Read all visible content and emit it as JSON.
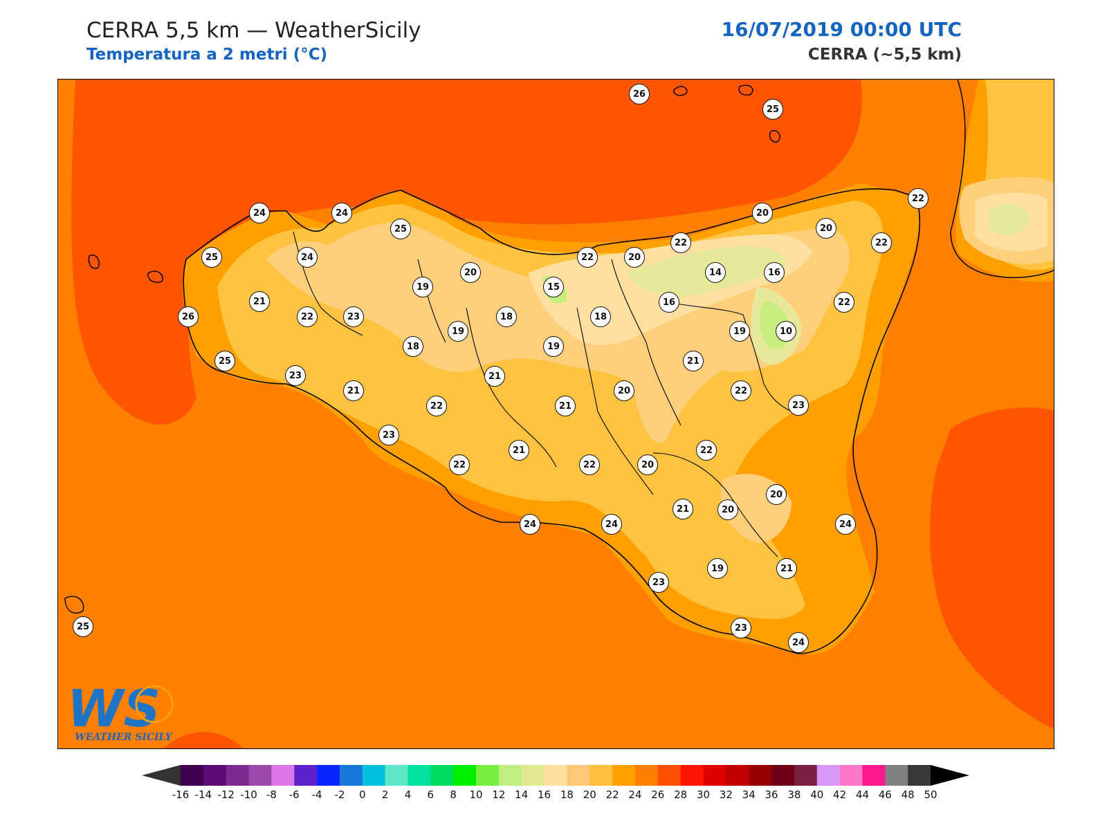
{
  "header": {
    "title": "CERRA 5,5 km — WeatherSicily",
    "subtitle": "Temperatura a 2 metri (°C)",
    "datetime": "16/07/2019 00:00 UTC",
    "model": "CERRA (~5,5 km)"
  },
  "logo": {
    "name": "weather-sicily-logo",
    "letters": "WS",
    "text": "WEATHER SICILY"
  },
  "colors": {
    "sea_hot": "#ff5400",
    "sea_warm": "#ff8000",
    "land_24": "#ffa000",
    "land_22": "#ffc340",
    "land_20": "#ffcf7c",
    "land_18": "#ffe0a0",
    "land_16": "#e8e89a",
    "land_14": "#c8ee80",
    "title_blue": "#1565c0"
  },
  "colorbar": {
    "labels": [
      "-16",
      "-14",
      "-12",
      "-10",
      "-8",
      "-6",
      "-4",
      "-2",
      "0",
      "2",
      "4",
      "6",
      "8",
      "10",
      "12",
      "14",
      "16",
      "18",
      "20",
      "22",
      "24",
      "26",
      "28",
      "30",
      "32",
      "34",
      "36",
      "38",
      "40",
      "42",
      "44",
      "46",
      "48",
      "50"
    ],
    "colors": [
      "#3f0050",
      "#5c0a73",
      "#7b2a8f",
      "#9b4aab",
      "#dd77e8",
      "#5a22c8",
      "#0a26ff",
      "#1878d8",
      "#00c0e0",
      "#5fe8c8",
      "#00e0a0",
      "#00dc60",
      "#00f000",
      "#78f040",
      "#c0ee80",
      "#e0e890",
      "#ffe0a0",
      "#ffc878",
      "#ffc040",
      "#ffa000",
      "#ff8000",
      "#ff5000",
      "#ff1400",
      "#e00000",
      "#c00000",
      "#980000",
      "#700018",
      "#7a2040",
      "#d898f8",
      "#ff78c8",
      "#ff1890",
      "#808080",
      "#383838"
    ],
    "under_color": "#333333",
    "over_color": "#000000"
  },
  "stations": [
    {
      "v": "26"
    },
    {
      "v": "25"
    },
    {
      "v": "24"
    },
    {
      "v": "24"
    },
    {
      "v": "25"
    },
    {
      "v": "25"
    },
    {
      "v": "24"
    },
    {
      "v": "21"
    },
    {
      "v": "26"
    },
    {
      "v": "22"
    },
    {
      "v": "23"
    },
    {
      "v": "19"
    },
    {
      "v": "20"
    },
    {
      "v": "19"
    },
    {
      "v": "18"
    },
    {
      "v": "18"
    },
    {
      "v": "15"
    },
    {
      "v": "18"
    },
    {
      "v": "22"
    },
    {
      "v": "20"
    },
    {
      "v": "22"
    },
    {
      "v": "20"
    },
    {
      "v": "22"
    },
    {
      "v": "22"
    },
    {
      "v": "20"
    },
    {
      "v": "14"
    },
    {
      "v": "16"
    },
    {
      "v": "16"
    },
    {
      "v": "22"
    },
    {
      "v": "19"
    },
    {
      "v": "10"
    },
    {
      "v": "19"
    },
    {
      "v": "21"
    },
    {
      "v": "25"
    },
    {
      "v": "23"
    },
    {
      "v": "21"
    },
    {
      "v": "22"
    },
    {
      "v": "21"
    },
    {
      "v": "21"
    },
    {
      "v": "20"
    },
    {
      "v": "22"
    },
    {
      "v": "23"
    },
    {
      "v": "23"
    },
    {
      "v": "22"
    },
    {
      "v": "21"
    },
    {
      "v": "22"
    },
    {
      "v": "20"
    },
    {
      "v": "22"
    },
    {
      "v": "20"
    },
    {
      "v": "24"
    },
    {
      "v": "24"
    },
    {
      "v": "21"
    },
    {
      "v": "20"
    },
    {
      "v": "24"
    },
    {
      "v": "23"
    },
    {
      "v": "19"
    },
    {
      "v": "21"
    },
    {
      "v": "23"
    },
    {
      "v": "24"
    },
    {
      "v": "25"
    }
  ]
}
